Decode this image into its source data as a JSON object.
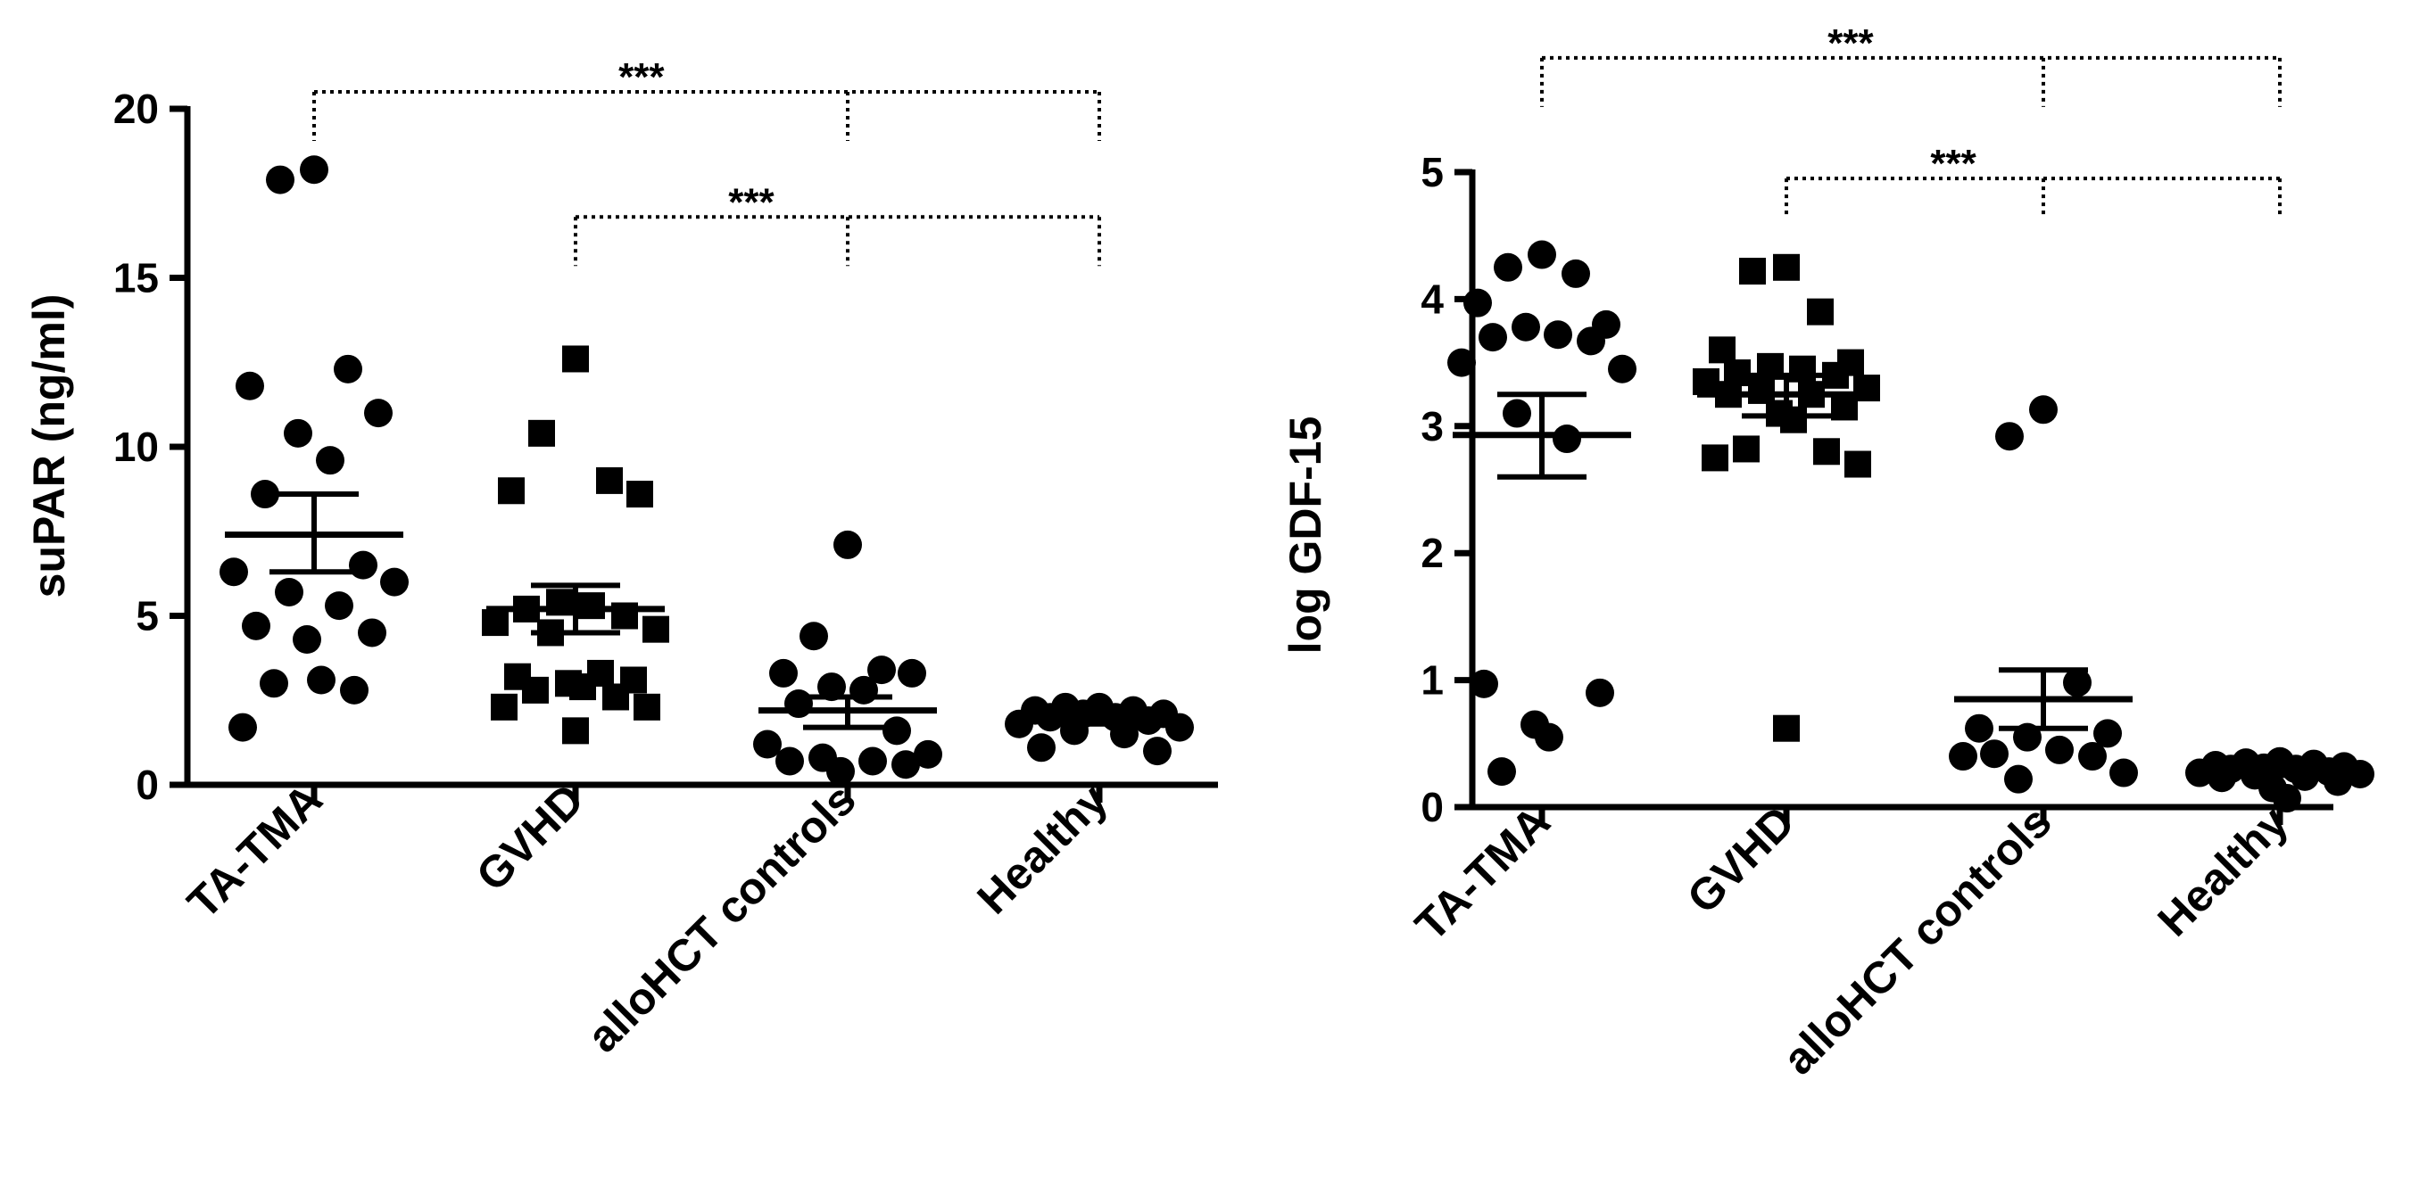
{
  "chart_data": [
    {
      "type": "scatter",
      "ylabel": "suPAR  (ng/ml)",
      "ylim": [
        0,
        20
      ],
      "yticks": [
        0,
        5,
        10,
        15,
        20
      ],
      "categories": [
        "TA-TMA",
        "GVHD",
        "alloHCT controls",
        "Healthy"
      ],
      "groups": [
        {
          "name": "TA-TMA",
          "marker": "circle",
          "mean": 7.4,
          "sem_low": 6.3,
          "sem_high": 8.6,
          "values": [
            18.2,
            17.9,
            12.3,
            11.8,
            11.0,
            10.4,
            9.6,
            8.6,
            6.5,
            6.3,
            6.0,
            5.7,
            5.3,
            4.7,
            4.5,
            4.3,
            3.1,
            3.0,
            2.8,
            1.7
          ]
        },
        {
          "name": "GVHD",
          "marker": "square",
          "mean": 5.2,
          "sem_low": 4.5,
          "sem_high": 5.9,
          "values": [
            12.6,
            10.4,
            9.0,
            8.7,
            8.6,
            5.4,
            5.3,
            5.2,
            5.0,
            4.8,
            4.6,
            4.5,
            3.3,
            3.2,
            3.1,
            3.0,
            2.9,
            2.8,
            2.6,
            2.3,
            2.3,
            1.6
          ]
        },
        {
          "name": "alloHCT controls",
          "marker": "circle",
          "mean": 2.2,
          "sem_low": 1.7,
          "sem_high": 2.6,
          "values": [
            7.1,
            4.4,
            3.4,
            3.3,
            3.3,
            2.9,
            2.8,
            2.4,
            1.6,
            1.2,
            0.9,
            0.8,
            0.7,
            0.7,
            0.6,
            0.4
          ]
        },
        {
          "name": "Healthy",
          "marker": "circle",
          "mean": 1.9,
          "sem_low": 1.8,
          "sem_high": 2.0,
          "values": [
            2.3,
            2.3,
            2.2,
            2.2,
            2.1,
            2.1,
            2.0,
            2.0,
            1.9,
            1.8,
            1.7,
            1.6,
            1.5,
            1.1,
            1.0
          ]
        }
      ],
      "significance": [
        {
          "label": "***",
          "from": "TA-TMA",
          "to": [
            "alloHCT controls",
            "Healthy"
          ],
          "y": 20.5
        },
        {
          "label": "***",
          "from": "GVHD",
          "to": [
            "alloHCT controls",
            "Healthy"
          ],
          "y": 16.8
        }
      ]
    },
    {
      "type": "scatter",
      "ylabel": "log GDF-15",
      "ylim": [
        0,
        5
      ],
      "yticks": [
        0,
        1,
        2,
        3,
        4,
        5
      ],
      "categories": [
        "TA-TMA",
        "GVHD",
        "alloHCT controls",
        "Healthy"
      ],
      "groups": [
        {
          "name": "TA-TMA",
          "marker": "circle",
          "mean": 2.93,
          "sem_low": 2.6,
          "sem_high": 3.25,
          "values": [
            4.35,
            4.25,
            4.2,
            3.97,
            3.8,
            3.78,
            3.72,
            3.7,
            3.67,
            3.5,
            3.45,
            3.1,
            2.9,
            0.97,
            0.9,
            0.65,
            0.55,
            0.28
          ]
        },
        {
          "name": "GVHD",
          "marker": "square",
          "mean": 3.25,
          "sem_low": 3.08,
          "sem_high": 3.4,
          "values": [
            4.25,
            4.22,
            3.9,
            3.6,
            3.5,
            3.47,
            3.45,
            3.42,
            3.4,
            3.35,
            3.3,
            3.28,
            3.25,
            3.25,
            3.15,
            3.1,
            3.05,
            2.82,
            2.8,
            2.75,
            2.7,
            0.62
          ]
        },
        {
          "name": "alloHCT controls",
          "marker": "circle",
          "mean": 0.85,
          "sem_low": 0.62,
          "sem_high": 1.08,
          "values": [
            3.13,
            2.92,
            0.98,
            0.62,
            0.58,
            0.55,
            0.45,
            0.42,
            0.4,
            0.4,
            0.27,
            0.22
          ]
        },
        {
          "name": "Healthy",
          "marker": "circle",
          "mean": 0.27,
          "sem_low": 0.25,
          "sem_high": 0.29,
          "values": [
            0.36,
            0.35,
            0.34,
            0.33,
            0.32,
            0.31,
            0.3,
            0.3,
            0.28,
            0.27,
            0.26,
            0.25,
            0.24,
            0.23,
            0.2,
            0.15,
            0.07
          ]
        }
      ],
      "significance": [
        {
          "label": "***",
          "from": "TA-TMA",
          "to": [
            "alloHCT controls",
            "Healthy"
          ],
          "y": 5.9
        },
        {
          "label": "***",
          "from": "GVHD",
          "to": [
            "alloHCT controls",
            "Healthy"
          ],
          "y": 4.95
        }
      ]
    }
  ]
}
